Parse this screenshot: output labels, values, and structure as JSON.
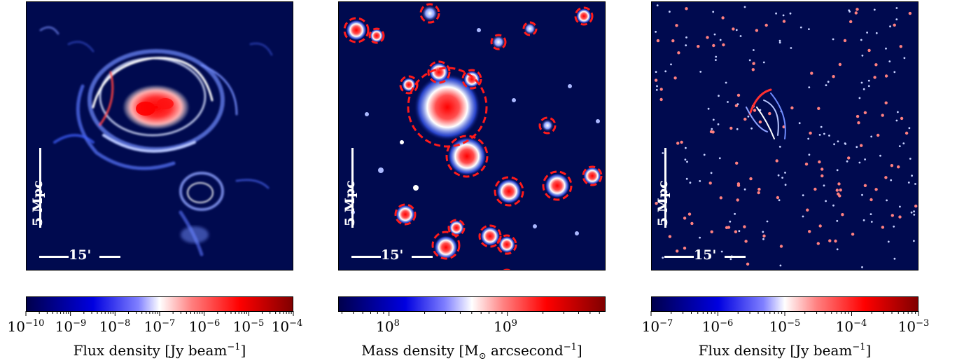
{
  "colors": {
    "background": "#000a4f",
    "accent_red": "#ff1a1a"
  },
  "panels": [
    {
      "name": "radio-flux",
      "scalebar_length_label": "5 Mpc",
      "scalebar_angle_label": "15'",
      "colorbar": {
        "label": "Flux density [Jy beam",
        "label_exp": "−1",
        "label_tail": "]",
        "ticks": [
          {
            "base": "10",
            "exp": "−10"
          },
          {
            "base": "10",
            "exp": "−9"
          },
          {
            "base": "10",
            "exp": "−8"
          },
          {
            "base": "10",
            "exp": "−7"
          },
          {
            "base": "10",
            "exp": "−6"
          },
          {
            "base": "10",
            "exp": "−5"
          },
          {
            "base": "10",
            "exp": "−4"
          }
        ]
      }
    },
    {
      "name": "mass-density",
      "scalebar_length_label": "5 Mpc",
      "scalebar_angle_label": "15'",
      "colorbar": {
        "label": "Mass density [M",
        "label_sub": "⊙",
        "label_mid": " arcsecond",
        "label_exp": "−1",
        "label_tail": "]",
        "ticks": [
          {
            "base": "10",
            "exp": "8"
          },
          {
            "base": "10",
            "exp": "9"
          }
        ]
      }
    },
    {
      "name": "point-sources-flux",
      "scalebar_length_label": "5 Mpc",
      "scalebar_angle_label": "15'",
      "colorbar": {
        "label": "Flux density [Jy beam",
        "label_exp": "−1",
        "label_tail": "]",
        "ticks": [
          {
            "base": "10",
            "exp": "−7"
          },
          {
            "base": "10",
            "exp": "−6"
          },
          {
            "base": "10",
            "exp": "−5"
          },
          {
            "base": "10",
            "exp": "−4"
          },
          {
            "base": "10",
            "exp": "−3"
          }
        ]
      }
    }
  ]
}
